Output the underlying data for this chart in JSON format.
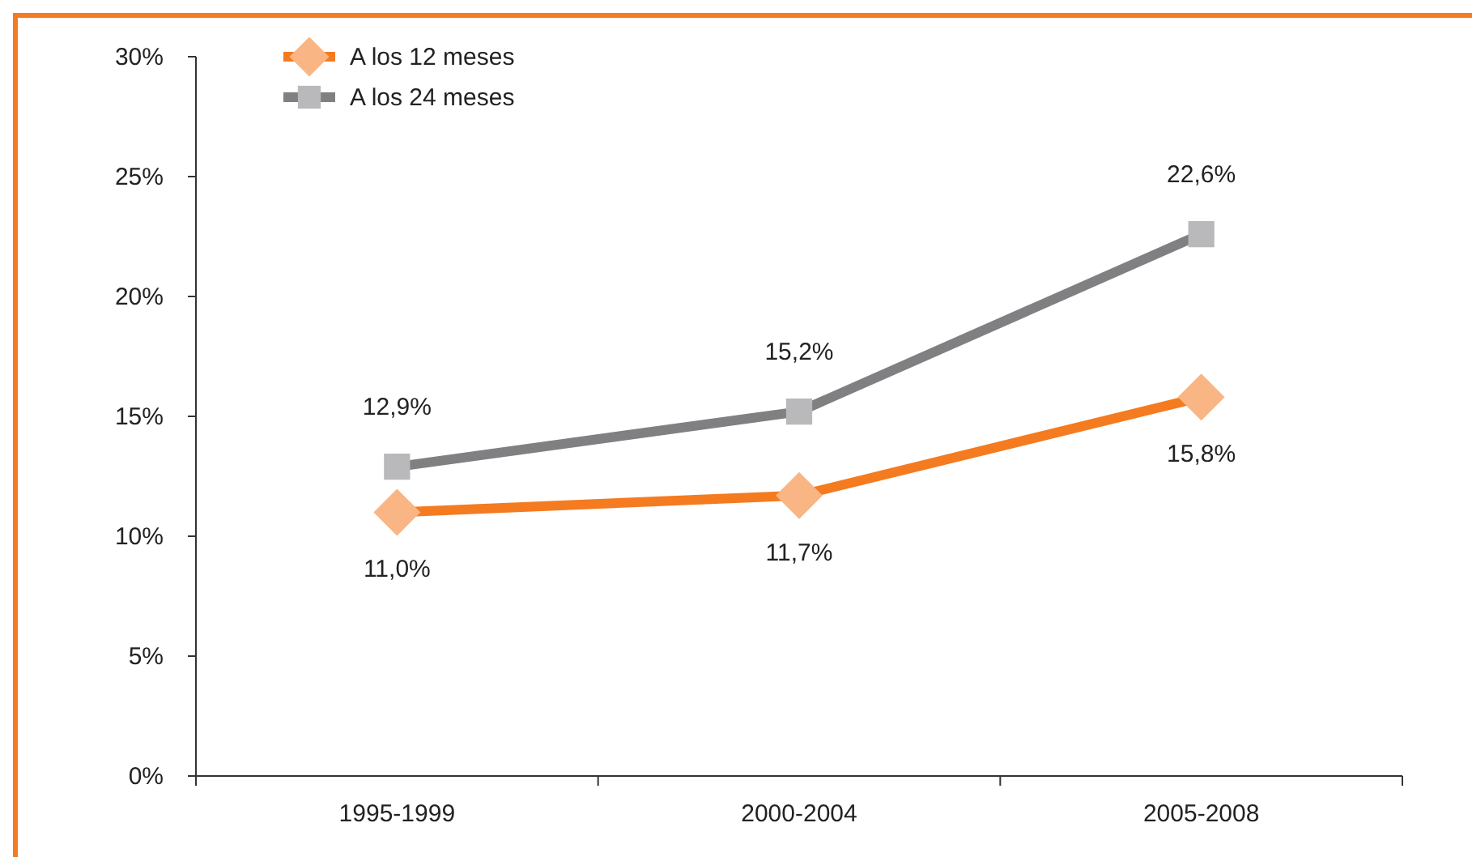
{
  "chart_data": {
    "type": "line",
    "categories": [
      "1995-1999",
      "2000-2004",
      "2005-2008"
    ],
    "series": [
      {
        "name": "A los 12 meses",
        "color": "#f47b20",
        "marker": "diamond",
        "values": [
          11.0,
          11.7,
          15.8
        ],
        "value_labels": [
          "11,0%",
          "11,7%",
          "15,8%"
        ]
      },
      {
        "name": "A los 24 meses",
        "color": "#808083",
        "marker": "square",
        "values": [
          12.9,
          15.2,
          22.6
        ],
        "value_labels": [
          "12,9%",
          "15,2%",
          "22,6%"
        ]
      }
    ],
    "ylim": [
      0,
      30
    ],
    "yticks": [
      {
        "value": 0,
        "label": "0%"
      },
      {
        "value": 5,
        "label": "5%"
      },
      {
        "value": 10,
        "label": "10%"
      },
      {
        "value": 15,
        "label": "15%"
      },
      {
        "value": 20,
        "label": "20%"
      },
      {
        "value": 25,
        "label": "25%"
      },
      {
        "value": 30,
        "label": "30%"
      }
    ],
    "grid": false,
    "legend": "top left"
  }
}
